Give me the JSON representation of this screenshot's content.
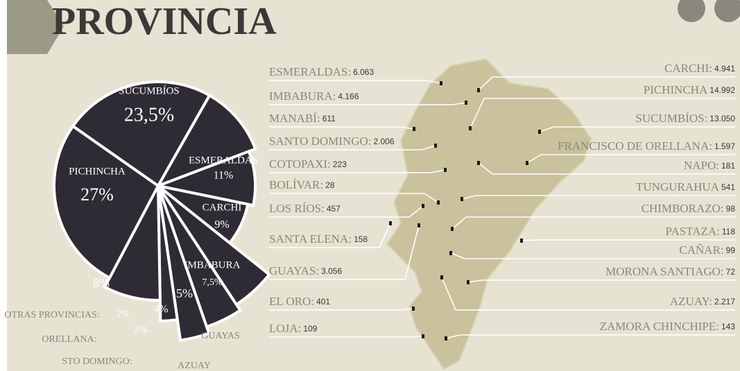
{
  "chart_data": {
    "type": "pie",
    "title": "PROVINCIA",
    "categories": [
      "SUCUMBÍOS",
      "ESMERALDAS",
      "CARCHI",
      "IMBABURA",
      "GUAYAS",
      "AZUAY",
      "STO DOMINGO:",
      "ORELLANA:",
      "OTRAS PROVINCIAS:",
      "PICHINCHA"
    ],
    "values": [
      23.5,
      11,
      9,
      7.5,
      5,
      4,
      3,
      2,
      8,
      27
    ],
    "value_labels": [
      "23,5%",
      "11%",
      "9%",
      "7,5%",
      "5%",
      "4%",
      "3%",
      "2%",
      "8%",
      "27%"
    ],
    "color": "#2f2b34"
  },
  "map": {
    "left": [
      {
        "name": "ESMERALDAS:",
        "value": "6.063"
      },
      {
        "name": "IMBABURA:",
        "value": "4.166"
      },
      {
        "name": "MANABÍ:",
        "value": "611"
      },
      {
        "name": "SANTO DOMINGO:",
        "value": "2.006"
      },
      {
        "name": "COTOPAXI:",
        "value": "223"
      },
      {
        "name": "BOLÍVAR:",
        "value": "28"
      },
      {
        "name": "LOS RÍOS:",
        "value": "457"
      },
      {
        "name": "SANTA ELENA:",
        "value": "158"
      },
      {
        "name": "GUAYAS:",
        "value": "3.056"
      },
      {
        "name": "EL ORO:",
        "value": "401"
      },
      {
        "name": "LOJA:",
        "value": "109"
      }
    ],
    "right": [
      {
        "name": "CARCHI:",
        "value": "4.941"
      },
      {
        "name": "PICHINCHA",
        "value": "14.992"
      },
      {
        "name": "SUCUMBÍOS:",
        "value": "13.050"
      },
      {
        "name": "FRANCISCO DE ORELLANA:",
        "value": "1.597"
      },
      {
        "name": "NAPO:",
        "value": "181"
      },
      {
        "name": "TUNGURAHUA",
        "value": "541"
      },
      {
        "name": "CHIMBORAZO:",
        "value": "98"
      },
      {
        "name": "PASTAZA:",
        "value": "118"
      },
      {
        "name": "CAÑAR:",
        "value": "99"
      },
      {
        "name": "MORONA SANTIAGO:",
        "value": "72"
      },
      {
        "name": "AZUAY:",
        "value": "2.217"
      },
      {
        "name": "ZAMORA CHINCHIPE:",
        "value": "143"
      }
    ]
  }
}
